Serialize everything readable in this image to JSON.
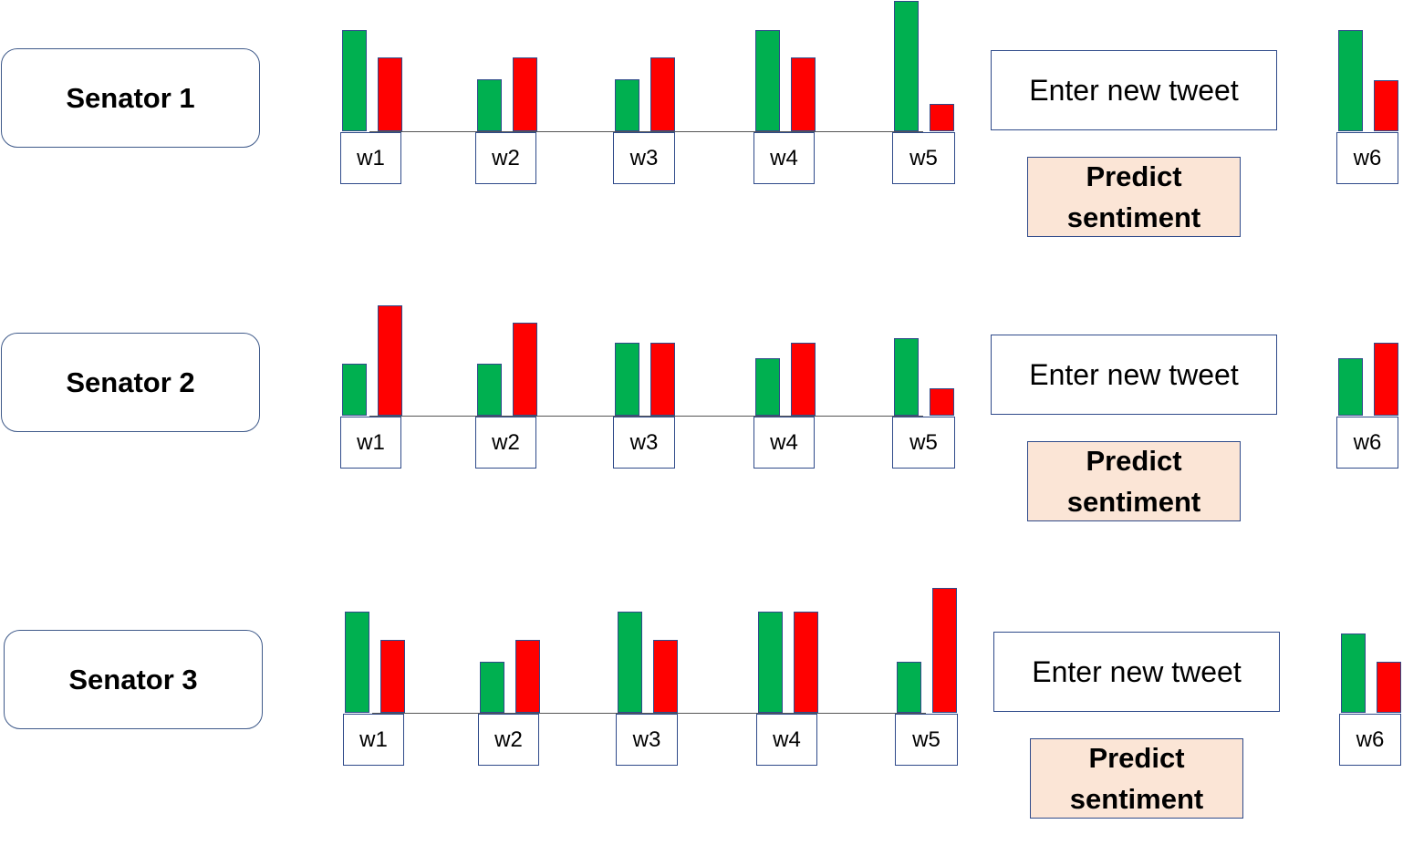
{
  "colors": {
    "positive": "#00b050",
    "negative": "#ff0000",
    "button": "#fbe5d6"
  },
  "rows": [
    {
      "senator_label": "Senator 1",
      "tweet_placeholder": "Enter new tweet",
      "predict_label": "Predict sentiment",
      "windows": [
        {
          "label": "w1",
          "positive": 111,
          "negative": 81
        },
        {
          "label": "w2",
          "positive": 57,
          "negative": 81
        },
        {
          "label": "w3",
          "positive": 57,
          "negative": 81
        },
        {
          "label": "w4",
          "positive": 111,
          "negative": 81
        },
        {
          "label": "w5",
          "positive": 143,
          "negative": 30
        }
      ],
      "prediction": {
        "label": "w6",
        "positive": 111,
        "negative": 56
      }
    },
    {
      "senator_label": "Senator 2",
      "tweet_placeholder": "Enter new tweet",
      "predict_label": "Predict sentiment",
      "windows": [
        {
          "label": "w1",
          "positive": 57,
          "negative": 121
        },
        {
          "label": "w2",
          "positive": 57,
          "negative": 102
        },
        {
          "label": "w3",
          "positive": 80,
          "negative": 80
        },
        {
          "label": "w4",
          "positive": 63,
          "negative": 80
        },
        {
          "label": "w5",
          "positive": 85,
          "negative": 30
        }
      ],
      "prediction": {
        "label": "w6",
        "positive": 63,
        "negative": 80
      }
    },
    {
      "senator_label": "Senator 3",
      "tweet_placeholder": "Enter new tweet",
      "predict_label": "Predict sentiment",
      "windows": [
        {
          "label": "w1",
          "positive": 111,
          "negative": 80
        },
        {
          "label": "w2",
          "positive": 56,
          "negative": 80
        },
        {
          "label": "w3",
          "positive": 111,
          "negative": 80
        },
        {
          "label": "w4",
          "positive": 111,
          "negative": 111
        },
        {
          "label": "w5",
          "positive": 56,
          "negative": 137
        }
      ],
      "prediction": {
        "label": "w6",
        "positive": 87,
        "negative": 56
      }
    }
  ]
}
